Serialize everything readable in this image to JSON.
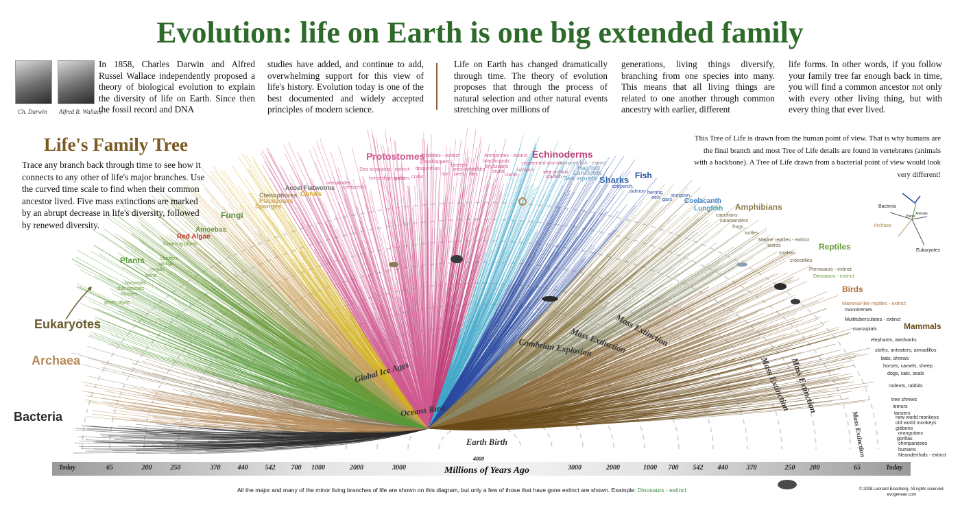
{
  "title": "Evolution: life on Earth is one big extended family",
  "signatures": [
    "Ch. Darwin",
    "Alfred R. Wallace"
  ],
  "intro_columns": [
    "In 1858, Charles Darwin and Alfred Russel Wallace independently proposed a theory of biological evolution to explain the diversity of life on Earth. Since then the fossil record and DNA",
    "studies have added, and continue to add, overwhelming support for this view of life's history. Evolution today is one of the best documented and widely accepted principles of modern science.",
    "Life on Earth has changed dramatically through time. The theory of evolution proposes that through the process of natural selection and other natural events stretching over millions of",
    "generations, living things diversify, branching from one species into many. This means that all living things are related to one another through common ancestry with earlier, different",
    "life forms. In other words, if you follow your family tree far enough back in time, you will find a common ancestor not only with every other living thing, but with every thing that ever lived."
  ],
  "left_panel": {
    "heading": "Life's Family Tree",
    "text": "Trace any branch back through time to see how it connects to any other of life's major branches. Use the curved time scale to find when their common ancestor lived. Five mass extinctions are marked by an abrupt decrease in life's diversity, followed by renewed diversity."
  },
  "right_note": "This Tree of Life is drawn from the human point of view. That is why humans are the final branch and most Tree of Life details are found in vertebrates (animals with a backbone). A Tree of Life drawn from a bacterial point of view would look very different!",
  "inset_labels": [
    "Bacteria",
    "Archaea",
    "Eukaryotes",
    "Plants",
    "Animals"
  ],
  "clades": [
    {
      "text": "Bacteria",
      "color": "#2a2a2a"
    },
    {
      "text": "Archaea",
      "color": "#b58a5a"
    },
    {
      "text": "Eukaryotes",
      "color": "#6b5a2e"
    },
    {
      "text": "Plants",
      "color": "#5a9a3a"
    },
    {
      "text": "Red Algae",
      "color": "#c0392b"
    },
    {
      "text": "Amoebas",
      "color": "#6a9a3a"
    },
    {
      "text": "Fungi",
      "color": "#5a8a3a"
    },
    {
      "text": "Sponges",
      "color": "#c8a05a"
    },
    {
      "text": "Placozoans",
      "color": "#c8a05a"
    },
    {
      "text": "Ctenophores",
      "color": "#8a7a4a"
    },
    {
      "text": "Acoel Flatworms",
      "color": "#6a6a6a"
    },
    {
      "text": "Corals",
      "color": "#d4b020"
    },
    {
      "text": "Protostomes",
      "color": "#d05a90"
    },
    {
      "text": "Echinoderms",
      "color": "#c0407a"
    },
    {
      "text": "Hagfish",
      "color": "#8ab0c8"
    },
    {
      "text": "Lancelets",
      "color": "#8ab0c8"
    },
    {
      "text": "Sea squirts",
      "color": "#8ab0c8"
    },
    {
      "text": "Sharks",
      "color": "#3a70b0"
    },
    {
      "text": "Fish",
      "color": "#2a4aa0"
    },
    {
      "text": "Coelacanth",
      "color": "#3a80c0"
    },
    {
      "text": "Lungfish",
      "color": "#40a0c0"
    },
    {
      "text": "Amphibians",
      "color": "#8a7a4a"
    },
    {
      "text": "Reptiles",
      "color": "#6a9a3a"
    },
    {
      "text": "Birds",
      "color": "#b0703a"
    },
    {
      "text": "Mammals",
      "color": "#6a4a1a"
    }
  ],
  "small_labels": [
    {
      "text": "flowering plants",
      "color": "#6a9a3a"
    },
    {
      "text": "conifers",
      "color": "#6a9a3a"
    },
    {
      "text": "ginkgo",
      "color": "#6a9a3a"
    },
    {
      "text": "cycads",
      "color": "#6a9a3a"
    },
    {
      "text": "ferns",
      "color": "#6a9a3a"
    },
    {
      "text": "horsetails",
      "color": "#6a9a3a"
    },
    {
      "text": "club mosses",
      "color": "#6a9a3a"
    },
    {
      "text": "mosses",
      "color": "#6a9a3a"
    },
    {
      "text": "green algae",
      "color": "#6a9a3a"
    },
    {
      "text": "nematodes",
      "color": "#d05a90"
    },
    {
      "text": "centipedes",
      "color": "#d05a90"
    },
    {
      "text": "Trilobites - extinct",
      "color": "#d05a90"
    },
    {
      "text": "grasshoppers",
      "color": "#d05a90"
    },
    {
      "text": "Ammonites - extinct",
      "color": "#d05a90"
    },
    {
      "text": "brachiopods",
      "color": "#d05a90"
    },
    {
      "text": "segmented worms",
      "color": "#d05a90"
    },
    {
      "text": "Sea scorpions - extinct",
      "color": "#d05a90"
    },
    {
      "text": "dragonflies",
      "color": "#d05a90"
    },
    {
      "text": "beetles",
      "color": "#d05a90"
    },
    {
      "text": "ants",
      "color": "#d05a90"
    },
    {
      "text": "bees",
      "color": "#d05a90"
    },
    {
      "text": "butterflies",
      "color": "#d05a90"
    },
    {
      "text": "flies",
      "color": "#d05a90"
    },
    {
      "text": "bryozoans",
      "color": "#d05a90"
    },
    {
      "text": "snails",
      "color": "#d05a90"
    },
    {
      "text": "octopus",
      "color": "#d05a90"
    },
    {
      "text": "clams",
      "color": "#d05a90"
    },
    {
      "text": "horseshoe crabs",
      "color": "#d05a90"
    },
    {
      "text": "spiders",
      "color": "#d05a90"
    },
    {
      "text": "crabs",
      "color": "#d05a90"
    },
    {
      "text": "lice",
      "color": "#d05a90"
    },
    {
      "text": "sea urchins",
      "color": "#c0407a"
    },
    {
      "text": "starfish",
      "color": "#c0407a"
    },
    {
      "text": "Armored fish - extinct",
      "color": "#8a8aa0"
    },
    {
      "text": "cod",
      "color": "#2a4aa0"
    },
    {
      "text": "perch",
      "color": "#2a4aa0"
    },
    {
      "text": "salmon",
      "color": "#2a4aa0"
    },
    {
      "text": "herring",
      "color": "#2a4aa0"
    },
    {
      "text": "eels",
      "color": "#2a4aa0"
    },
    {
      "text": "gars",
      "color": "#2a4aa0"
    },
    {
      "text": "sturgeon",
      "color": "#2a4aa0"
    },
    {
      "text": "caecilians",
      "color": "#6a5a3a"
    },
    {
      "text": "salamanders",
      "color": "#6a5a3a"
    },
    {
      "text": "frogs",
      "color": "#6a5a3a"
    },
    {
      "text": "turtles",
      "color": "#6a5a3a"
    },
    {
      "text": "Marine reptiles - extinct",
      "color": "#6a5a3a"
    },
    {
      "text": "lizards",
      "color": "#6a5a3a"
    },
    {
      "text": "snakes",
      "color": "#6a5a3a"
    },
    {
      "text": "crocodiles",
      "color": "#6a5a3a"
    },
    {
      "text": "Pterosaurs - extinct",
      "color": "#6a5a3a"
    },
    {
      "text": "Dinosaurs - extinct",
      "color": "#6a9a3a"
    },
    {
      "text": "Mammal-like reptiles - extinct",
      "color": "#b0703a"
    },
    {
      "text": "monotremes",
      "color": "#222222"
    },
    {
      "text": "Multituberculates - extinct",
      "color": "#222222"
    },
    {
      "text": "marsupials",
      "color": "#222222"
    },
    {
      "text": "elephants, aardvarks",
      "color": "#222222"
    },
    {
      "text": "sloths, anteaters, armadillos",
      "color": "#222222"
    },
    {
      "text": "bats, shrews",
      "color": "#222222"
    },
    {
      "text": "horses, camels, sheep",
      "color": "#222222"
    },
    {
      "text": "dogs, cats, seals",
      "color": "#222222"
    },
    {
      "text": "rodents, rabbits",
      "color": "#222222"
    },
    {
      "text": "tree shrews",
      "color": "#222222"
    },
    {
      "text": "lemurs",
      "color": "#222222"
    },
    {
      "text": "tarsiers",
      "color": "#222222"
    },
    {
      "text": "new world monkeys",
      "color": "#222222"
    },
    {
      "text": "old world monkeys",
      "color": "#222222"
    },
    {
      "text": "gibbons",
      "color": "#222222"
    },
    {
      "text": "orangutans",
      "color": "#222222"
    },
    {
      "text": "gorillas",
      "color": "#222222"
    },
    {
      "text": "chimpanzees",
      "color": "#222222"
    },
    {
      "text": "humans",
      "color": "#222222"
    },
    {
      "text": "Neanderthals - extinct",
      "color": "#222222"
    }
  ],
  "events": [
    "Global Ice Ages",
    "Oceans Rust",
    "Earth Birth",
    "Cambrian Explosion",
    "Mass Extinction",
    "Mass Extinction",
    "Mass Extinction",
    "Mass Extinction",
    "Mass Extinction"
  ],
  "axis": {
    "title": "Millions of Years Ago",
    "center_value": "4000",
    "ticks_left": [
      "Today",
      "65",
      "200",
      "250",
      "370",
      "440",
      "542",
      "700",
      "1000",
      "2000",
      "3000"
    ],
    "ticks_right": [
      "3000",
      "2000",
      "1000",
      "700",
      "542",
      "440",
      "370",
      "250",
      "200",
      "65",
      "Today"
    ]
  },
  "footnote": {
    "text": "All the major and many of the minor living branches of life are shown on this diagram, but only a few of those that have gone extinct are shown. Example:",
    "example": "Dinosaurs - extinct"
  },
  "copyright": [
    "© 2008 Leonard Eisenberg. All rights reserved.",
    "evogeneao.com"
  ],
  "colors": {
    "title": "#2e6a2a",
    "heading": "#7a5a22",
    "bacteria": "#2a2a2a",
    "archaea": "#b58a5a",
    "plants": "#5a9a3a",
    "protostomes": "#d05a90",
    "fish": "#2a4aa0",
    "mammals": "#6a4a1a"
  }
}
